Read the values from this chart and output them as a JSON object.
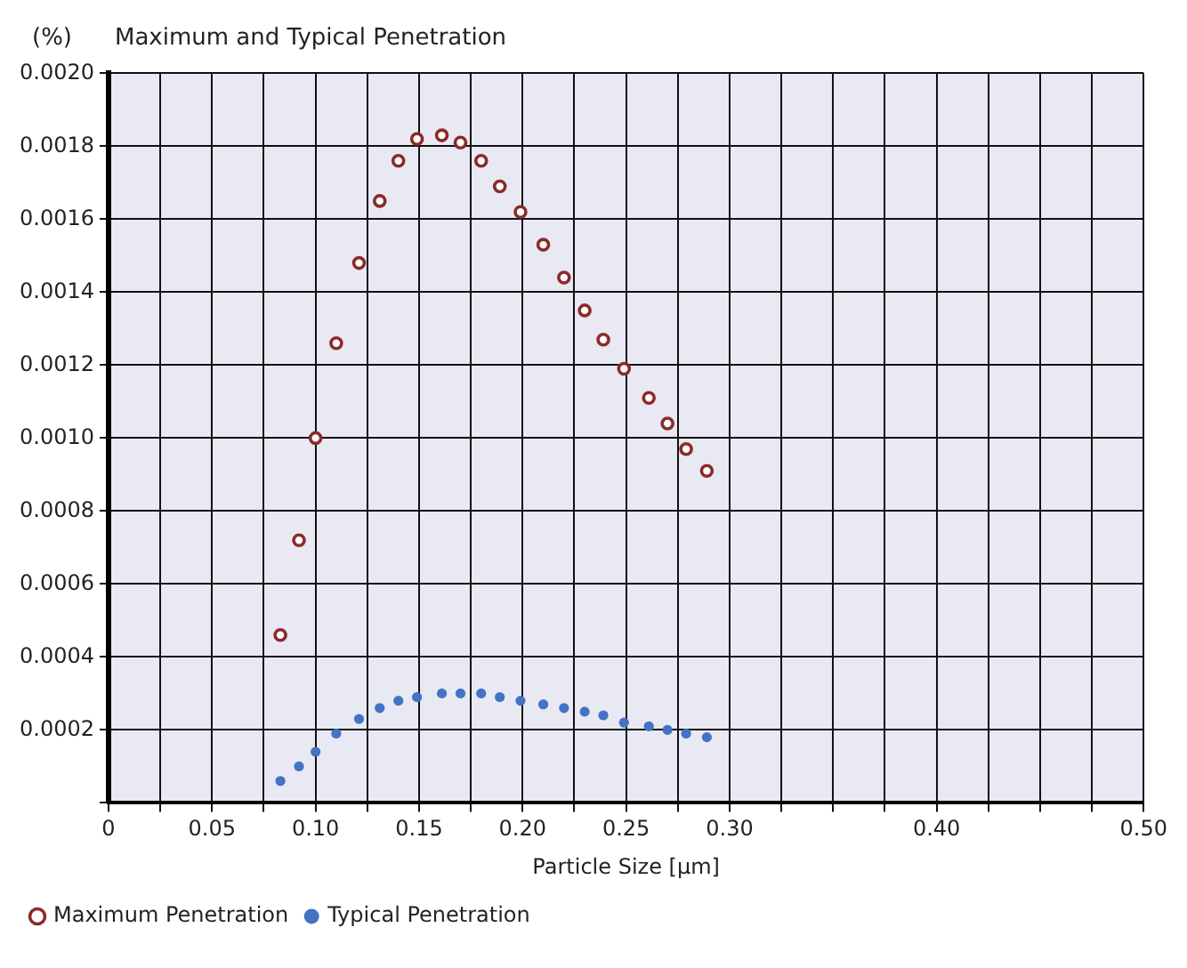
{
  "chart_data": {
    "type": "scatter",
    "title": "Maximum and Typical Penetration",
    "ylabel": "(%)",
    "xlabel": "Particle Size [μm]",
    "x": [
      0.083,
      0.092,
      0.1,
      0.11,
      0.121,
      0.131,
      0.14,
      0.149,
      0.161,
      0.17,
      0.18,
      0.189,
      0.199,
      0.21,
      0.22,
      0.23,
      0.239,
      0.249,
      0.261,
      0.27,
      0.279,
      0.289
    ],
    "series": [
      {
        "name": "Maximum Penetration",
        "color": "#8b2a2a",
        "marker": "circle",
        "values": [
          0.00046,
          0.00072,
          0.001,
          0.00126,
          0.00148,
          0.00165,
          0.00176,
          0.00182,
          0.00183,
          0.00181,
          0.00176,
          0.00169,
          0.00162,
          0.00153,
          0.00144,
          0.00135,
          0.00127,
          0.00119,
          0.00111,
          0.00104,
          0.00097,
          0.00091
        ]
      },
      {
        "name": "Typical Penetration",
        "color": "#4472c4",
        "marker": "circle",
        "values": [
          6e-05,
          0.0001,
          0.00014,
          0.00019,
          0.00023,
          0.00026,
          0.00028,
          0.00029,
          0.0003,
          0.0003,
          0.0003,
          0.00029,
          0.00028,
          0.00027,
          0.00026,
          0.00025,
          0.00024,
          0.00022,
          0.00021,
          0.0002,
          0.00019,
          0.00018
        ]
      }
    ],
    "xlim": [
      0,
      0.5
    ],
    "xticks": [
      {
        "value": 0,
        "label": "0"
      },
      {
        "value": 0.025,
        "label": null
      },
      {
        "value": 0.05,
        "label": "0.05"
      },
      {
        "value": 0.075,
        "label": null
      },
      {
        "value": 0.1,
        "label": "0.10"
      },
      {
        "value": 0.125,
        "label": null
      },
      {
        "value": 0.15,
        "label": "0.15"
      },
      {
        "value": 0.175,
        "label": null
      },
      {
        "value": 0.2,
        "label": "0.20"
      },
      {
        "value": 0.225,
        "label": null
      },
      {
        "value": 0.25,
        "label": "0.25"
      },
      {
        "value": 0.275,
        "label": null
      },
      {
        "value": 0.3,
        "label": "0.30"
      },
      {
        "value": 0.325,
        "label": null
      },
      {
        "value": 0.35,
        "label": null
      },
      {
        "value": 0.375,
        "label": null
      },
      {
        "value": 0.4,
        "label": "0.40"
      },
      {
        "value": 0.425,
        "label": null
      },
      {
        "value": 0.45,
        "label": null
      },
      {
        "value": 0.475,
        "label": null
      },
      {
        "value": 0.5,
        "label": "0.50"
      }
    ],
    "ylim": [
      0,
      0.002
    ],
    "yticks": [
      {
        "value": 0,
        "label": null
      },
      {
        "value": 0.0002,
        "label": "0.0002"
      },
      {
        "value": 0.0004,
        "label": "0.0004"
      },
      {
        "value": 0.0006,
        "label": "0.0006"
      },
      {
        "value": 0.0008,
        "label": "0.0008"
      },
      {
        "value": 0.001,
        "label": "0.0010"
      },
      {
        "value": 0.0012,
        "label": "0.0012"
      },
      {
        "value": 0.0014,
        "label": "0.0014"
      },
      {
        "value": 0.0016,
        "label": "0.0016"
      },
      {
        "value": 0.0018,
        "label": "0.0018"
      },
      {
        "value": 0.002,
        "label": "0.0020"
      }
    ],
    "grid": true,
    "legend": "bottom"
  }
}
